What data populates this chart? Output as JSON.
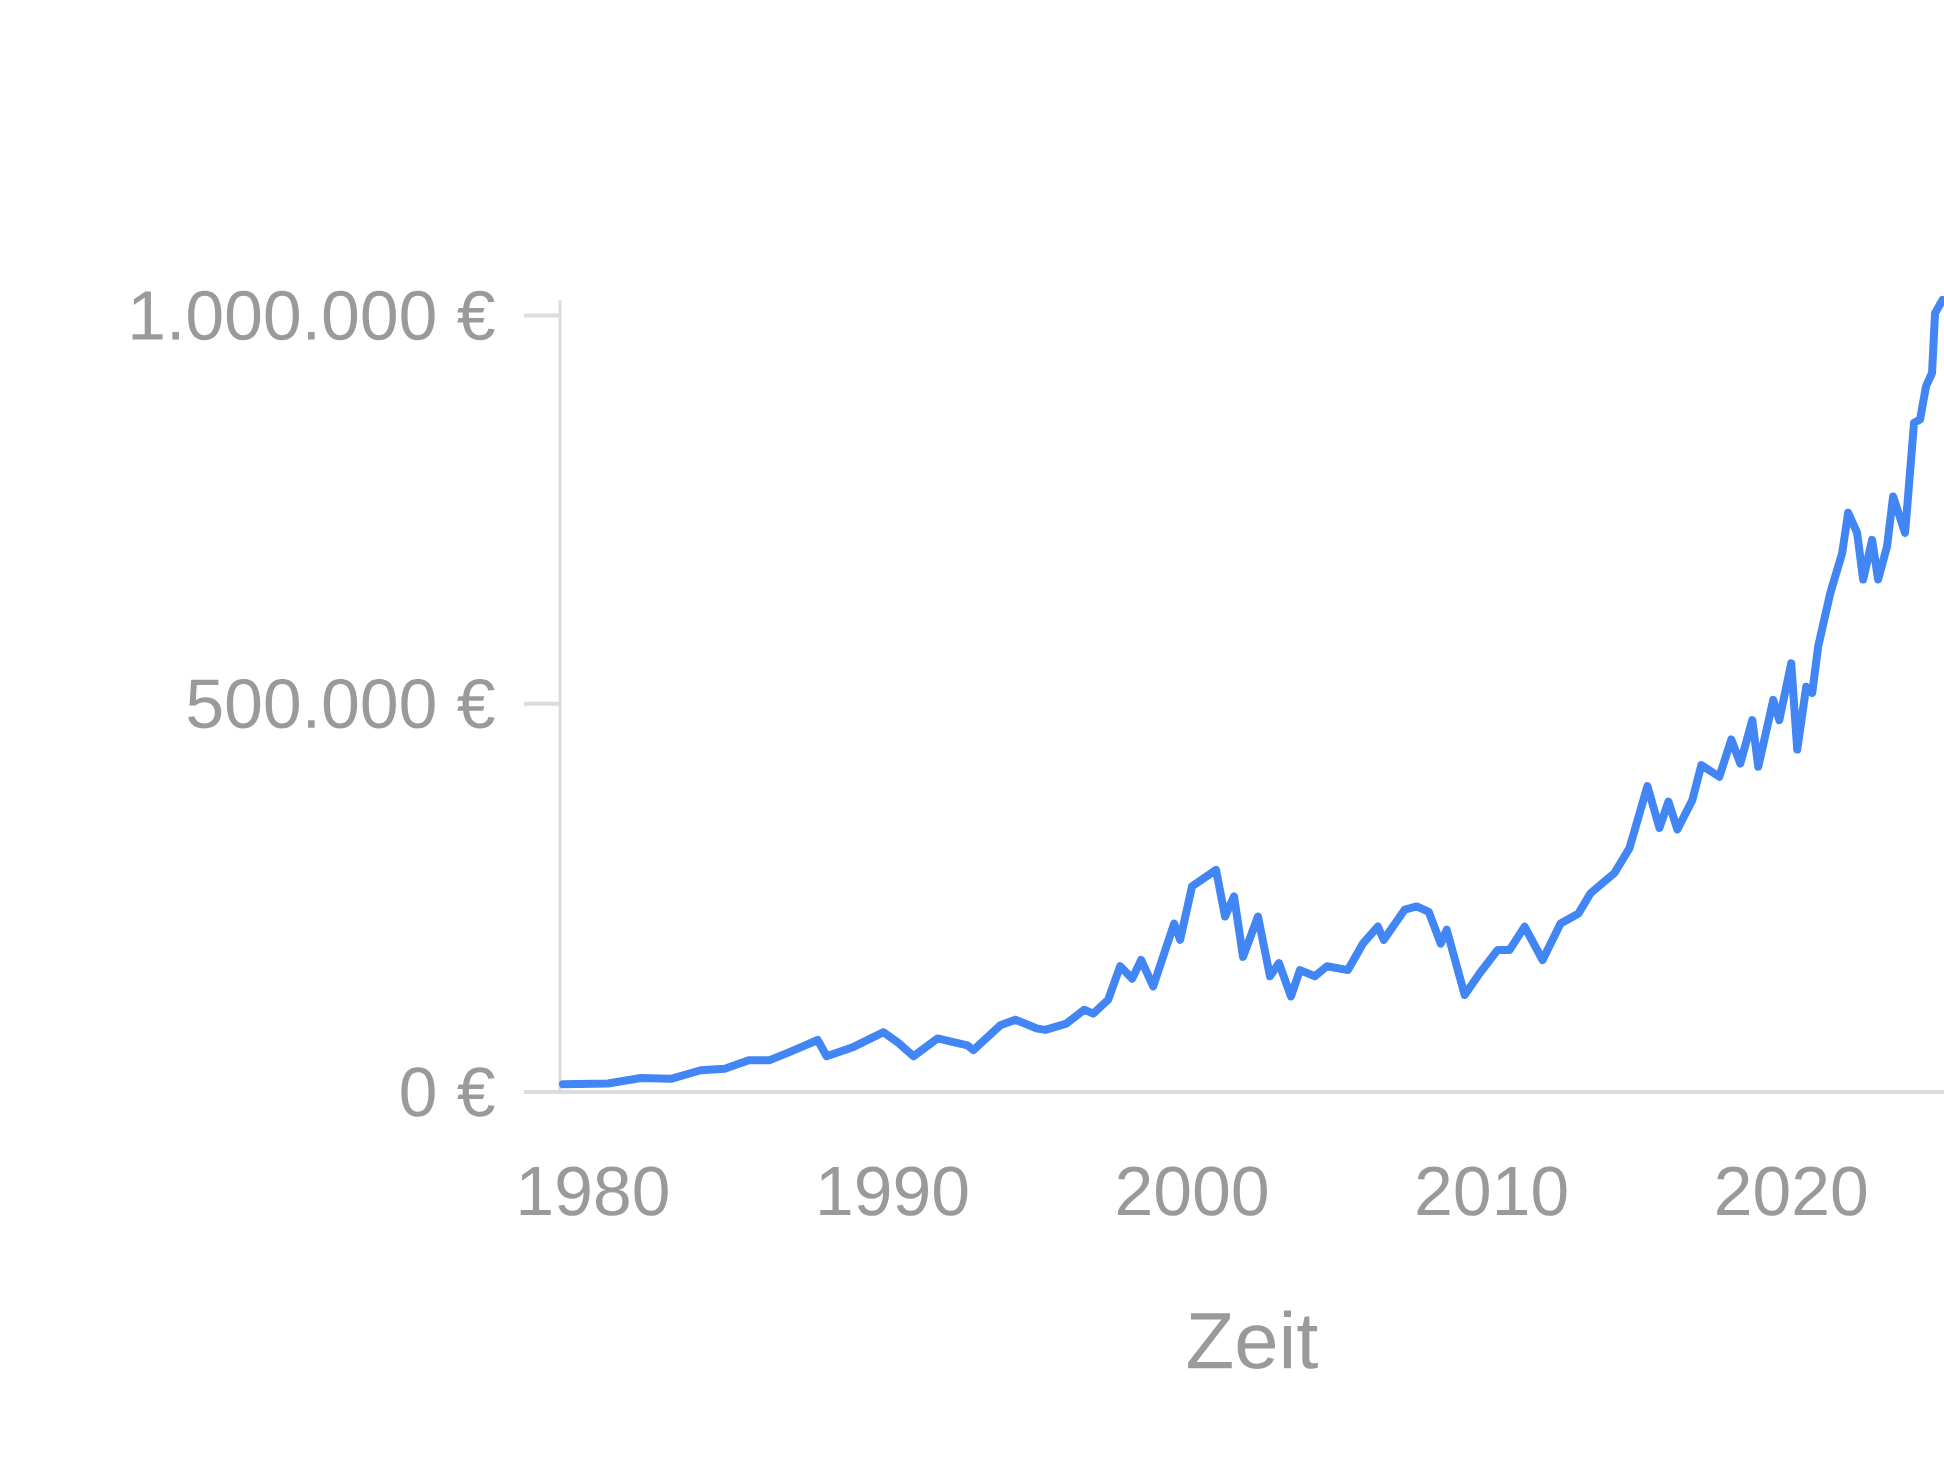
{
  "chart_data": {
    "type": "line",
    "xlabel": "Zeit",
    "xlim": [
      1978.9,
      2025.1
    ],
    "ylim": [
      0,
      1020000
    ],
    "xticks": [
      1980,
      1990,
      2000,
      2010,
      2020
    ],
    "yticks": [
      {
        "value": 0,
        "label": "0 €"
      },
      {
        "value": 500000,
        "label": "500.000 €"
      },
      {
        "value": 1000000,
        "label": "1.000.000 €"
      }
    ],
    "x": [
      1979.0,
      1980.5,
      1981.6,
      1982.6,
      1983.6,
      1984.4,
      1985.2,
      1985.9,
      1986.6,
      1987.5,
      1987.8,
      1988.7,
      1989.7,
      1990.2,
      1990.7,
      1991.5,
      1992.5,
      1992.7,
      1993.6,
      1994.1,
      1994.8,
      1995.1,
      1995.8,
      1996.4,
      1996.7,
      1997.2,
      1997.6,
      1998.0,
      1998.3,
      1998.7,
      1999.4,
      1999.6,
      2000.0,
      2000.8,
      2001.1,
      2001.4,
      2001.7,
      2002.2,
      2002.6,
      2002.9,
      2003.3,
      2003.6,
      2004.1,
      2004.5,
      2005.2,
      2005.7,
      2006.2,
      2006.4,
      2007.1,
      2007.5,
      2007.9,
      2008.3,
      2008.5,
      2009.1,
      2009.6,
      2010.2,
      2010.6,
      2011.1,
      2011.7,
      2012.3,
      2012.9,
      2013.3,
      2014.1,
      2014.6,
      2015.2,
      2015.6,
      2015.9,
      2016.2,
      2016.7,
      2017.0,
      2017.6,
      2018.0,
      2018.3,
      2018.7,
      2018.9,
      2019.4,
      2019.6,
      2020.0,
      2020.2,
      2020.5,
      2020.7,
      2020.9,
      2021.3,
      2021.7,
      2021.9,
      2022.2,
      2022.4,
      2022.7,
      2022.9,
      2023.2,
      2023.4,
      2023.8,
      2024.1,
      2024.3,
      2024.5,
      2024.7,
      2024.8,
      2025.05
    ],
    "series": [
      {
        "color": "#4285f4",
        "values": [
          10000,
          11000,
          18000,
          17000,
          28000,
          30000,
          41000,
          41000,
          52000,
          67000,
          46000,
          58000,
          77000,
          63000,
          46000,
          69000,
          60000,
          54000,
          86000,
          93000,
          82000,
          80000,
          88000,
          106000,
          101000,
          119000,
          162000,
          146000,
          170000,
          136000,
          217000,
          196000,
          265000,
          286000,
          226000,
          252000,
          174000,
          226000,
          149000,
          166000,
          123000,
          157000,
          149000,
          162000,
          157000,
          191000,
          213000,
          196000,
          235000,
          239000,
          232000,
          191000,
          209000,
          125000,
          153000,
          183000,
          183000,
          213000,
          170000,
          217000,
          230000,
          256000,
          282000,
          314000,
          394000,
          340000,
          374000,
          338000,
          376000,
          421000,
          406000,
          454000,
          423000,
          479000,
          419000,
          505000,
          479000,
          552000,
          441000,
          522000,
          514000,
          574000,
          642000,
          694000,
          746000,
          720000,
          660000,
          711000,
          660000,
          703000,
          767000,
          720000,
          862000,
          866000,
          909000,
          926000,
          1003000,
          1020000
        ]
      }
    ]
  }
}
